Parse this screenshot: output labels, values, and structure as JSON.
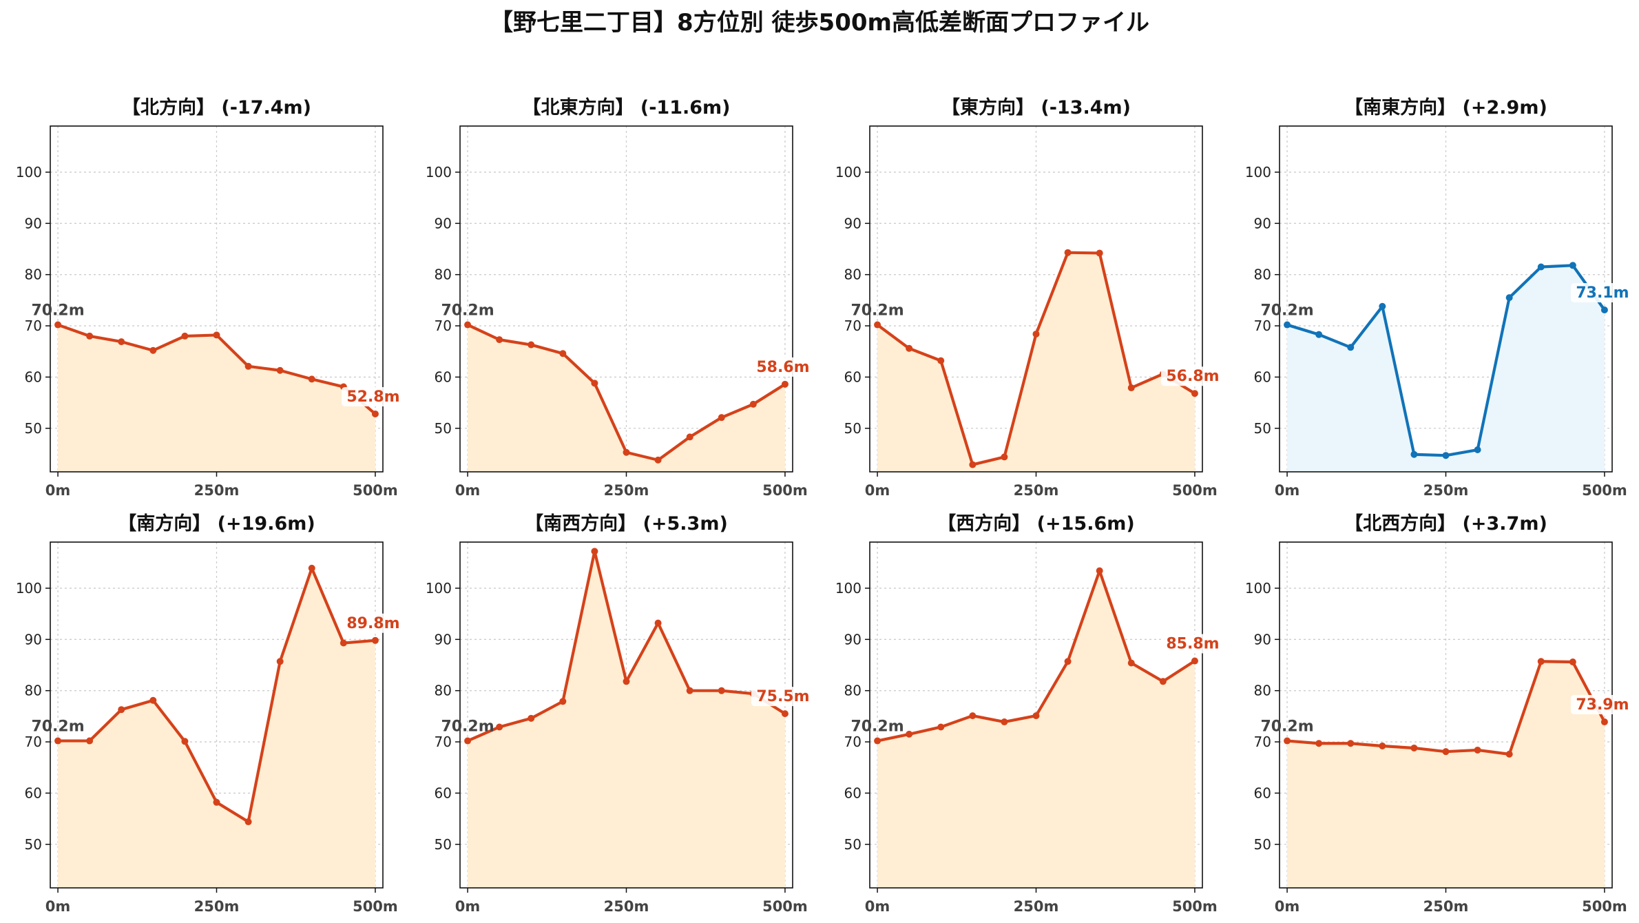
{
  "title": "【野七里二丁目】8方位別 徒歩500m高低差断面プロファイル",
  "colors": {
    "down": "#d5421a",
    "down_fill": "#ffeed4",
    "up": "#1173b8",
    "up_fill": "#eaf6fc"
  },
  "chart_data": [
    {
      "type": "area",
      "title": "【北方向】 (-17.4m)",
      "x": [
        0,
        50,
        100,
        150,
        200,
        250,
        300,
        350,
        400,
        450,
        500
      ],
      "values": [
        70.2,
        68.0,
        66.9,
        65.2,
        68.0,
        68.2,
        62.1,
        61.3,
        59.6,
        58.1,
        52.8
      ],
      "start_label": "70.2m",
      "end_label": "52.8m",
      "color": "down",
      "xticks": [
        "0m",
        "250m",
        "500m"
      ],
      "yticks": [
        50,
        60,
        70,
        80,
        90,
        100
      ],
      "ylim": [
        41.5,
        109
      ],
      "xlim": [
        -12,
        512
      ],
      "grid": true
    },
    {
      "type": "area",
      "title": "【北東方向】 (-11.6m)",
      "x": [
        0,
        50,
        100,
        150,
        200,
        250,
        300,
        350,
        400,
        450,
        500
      ],
      "values": [
        70.2,
        67.3,
        66.3,
        64.6,
        58.8,
        45.3,
        43.8,
        48.3,
        52.1,
        54.7,
        58.6
      ],
      "start_label": "70.2m",
      "end_label": "58.6m",
      "color": "down",
      "xticks": [
        "0m",
        "250m",
        "500m"
      ],
      "yticks": [
        50,
        60,
        70,
        80,
        90,
        100
      ],
      "ylim": [
        41.5,
        109
      ],
      "xlim": [
        -12,
        512
      ],
      "grid": true
    },
    {
      "type": "area",
      "title": "【東方向】 (-13.4m)",
      "x": [
        0,
        50,
        100,
        150,
        200,
        250,
        300,
        350,
        400,
        450,
        500
      ],
      "values": [
        70.2,
        65.6,
        63.2,
        42.9,
        44.4,
        68.4,
        84.3,
        84.2,
        57.9,
        60.6,
        56.8
      ],
      "start_label": "70.2m",
      "end_label": "56.8m",
      "color": "down",
      "xticks": [
        "0m",
        "250m",
        "500m"
      ],
      "yticks": [
        50,
        60,
        70,
        80,
        90,
        100
      ],
      "ylim": [
        41.5,
        109
      ],
      "xlim": [
        -12,
        512
      ],
      "grid": true
    },
    {
      "type": "area",
      "title": "【南東方向】 (+2.9m)",
      "x": [
        0,
        50,
        100,
        150,
        200,
        250,
        300,
        350,
        400,
        450,
        500
      ],
      "values": [
        70.2,
        68.3,
        65.8,
        73.8,
        44.9,
        44.7,
        45.8,
        75.5,
        81.5,
        81.8,
        73.1
      ],
      "start_label": "70.2m",
      "end_label": "73.1m",
      "color": "up",
      "xticks": [
        "0m",
        "250m",
        "500m"
      ],
      "yticks": [
        50,
        60,
        70,
        80,
        90,
        100
      ],
      "ylim": [
        41.5,
        109
      ],
      "xlim": [
        -12,
        512
      ],
      "grid": true
    },
    {
      "type": "area",
      "title": "【南方向】 (+19.6m)",
      "x": [
        0,
        50,
        100,
        150,
        200,
        250,
        300,
        350,
        400,
        450,
        500
      ],
      "values": [
        70.2,
        70.2,
        76.3,
        78.1,
        70.1,
        58.2,
        54.4,
        85.7,
        103.9,
        89.3,
        89.8
      ],
      "start_label": "70.2m",
      "end_label": "89.8m",
      "color": "down",
      "xticks": [
        "0m",
        "250m",
        "500m"
      ],
      "yticks": [
        50,
        60,
        70,
        80,
        90,
        100
      ],
      "ylim": [
        41.5,
        109
      ],
      "xlim": [
        -12,
        512
      ],
      "grid": true
    },
    {
      "type": "area",
      "title": "【南西方向】 (+5.3m)",
      "x": [
        0,
        50,
        100,
        150,
        200,
        250,
        300,
        350,
        400,
        450,
        500
      ],
      "values": [
        70.2,
        72.9,
        74.6,
        77.9,
        107.2,
        81.8,
        93.2,
        80.0,
        80.0,
        79.4,
        75.5
      ],
      "start_label": "70.2m",
      "end_label": "75.5m",
      "color": "down",
      "xticks": [
        "0m",
        "250m",
        "500m"
      ],
      "yticks": [
        50,
        60,
        70,
        80,
        90,
        100
      ],
      "ylim": [
        41.5,
        109
      ],
      "xlim": [
        -12,
        512
      ],
      "grid": true
    },
    {
      "type": "area",
      "title": "【西方向】 (+15.6m)",
      "x": [
        0,
        50,
        100,
        150,
        200,
        250,
        300,
        350,
        400,
        450,
        500
      ],
      "values": [
        70.2,
        71.5,
        72.9,
        75.1,
        73.9,
        75.1,
        85.7,
        103.4,
        85.4,
        81.8,
        85.8
      ],
      "start_label": "70.2m",
      "end_label": "85.8m",
      "color": "down",
      "xticks": [
        "0m",
        "250m",
        "500m"
      ],
      "yticks": [
        50,
        60,
        70,
        80,
        90,
        100
      ],
      "ylim": [
        41.5,
        109
      ],
      "xlim": [
        -12,
        512
      ],
      "grid": true
    },
    {
      "type": "area",
      "title": "【北西方向】 (+3.7m)",
      "x": [
        0,
        50,
        100,
        150,
        200,
        250,
        300,
        350,
        400,
        450,
        500
      ],
      "values": [
        70.2,
        69.7,
        69.7,
        69.2,
        68.8,
        68.1,
        68.4,
        67.6,
        85.7,
        85.6,
        73.9
      ],
      "start_label": "70.2m",
      "end_label": "73.9m",
      "color": "down",
      "xticks": [
        "0m",
        "250m",
        "500m"
      ],
      "yticks": [
        50,
        60,
        70,
        80,
        90,
        100
      ],
      "ylim": [
        41.5,
        109
      ],
      "xlim": [
        -12,
        512
      ],
      "grid": true
    }
  ]
}
